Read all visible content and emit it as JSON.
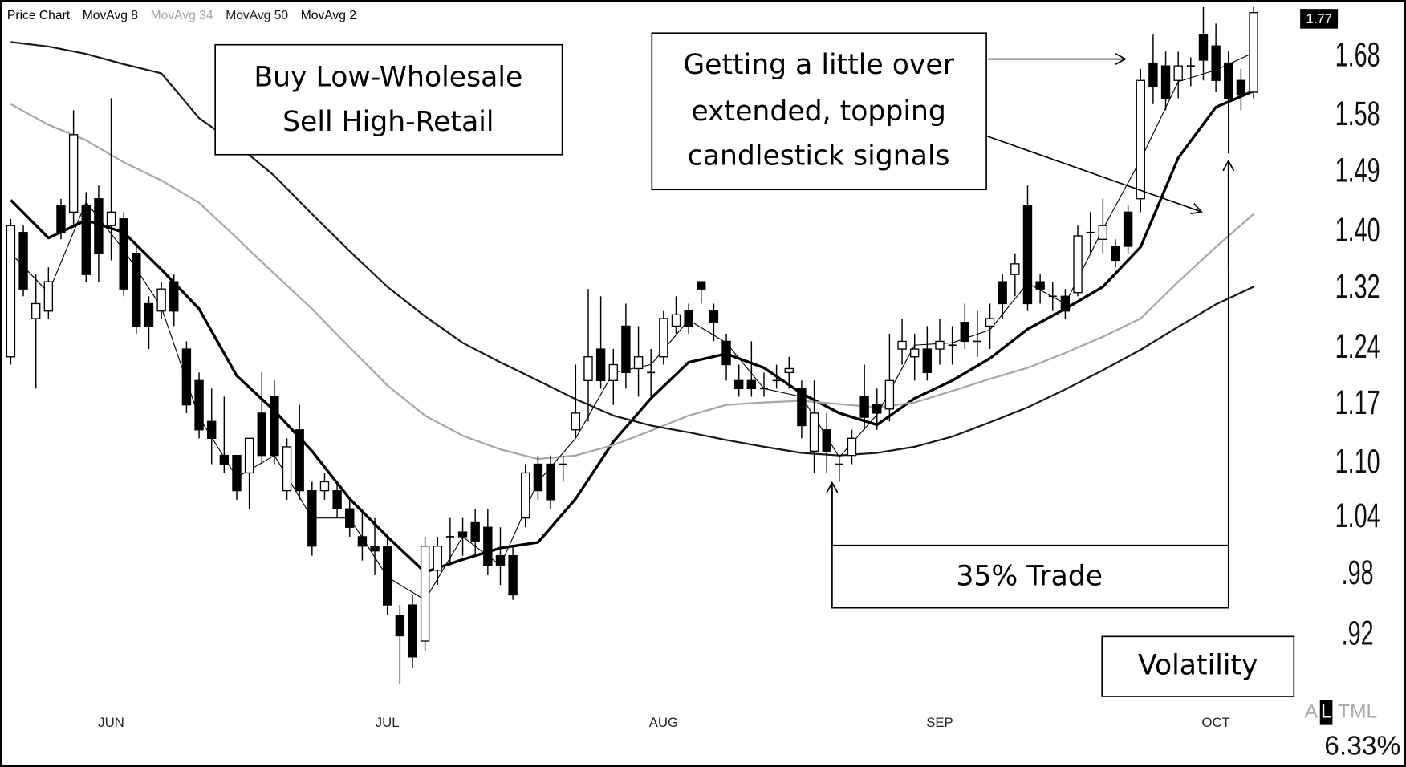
{
  "chart_data": {
    "type": "candlestick",
    "name": "Price Chart",
    "categories": [
      null,
      null,
      null,
      null,
      null,
      null,
      null,
      null,
      "JUN",
      null,
      null,
      null,
      null,
      null,
      null,
      null,
      null,
      null,
      null,
      null,
      null,
      null,
      null,
      null,
      null,
      null,
      null,
      null,
      null,
      null,
      "JUL",
      null,
      null,
      null,
      null,
      null,
      null,
      null,
      null,
      null,
      null,
      null,
      null,
      null,
      null,
      null,
      null,
      null,
      null,
      null,
      null,
      null,
      "AUG",
      null,
      null,
      null,
      null,
      null,
      null,
      null,
      null,
      null,
      null,
      null,
      null,
      null,
      null,
      null,
      null,
      null,
      null,
      null,
      null,
      null,
      "SEP",
      null,
      null,
      null,
      null,
      null,
      null,
      null,
      null,
      null,
      null,
      null,
      null,
      null,
      null,
      null,
      null,
      null,
      null,
      null,
      null,
      null,
      "OCT",
      null,
      null,
      null
    ],
    "open": [
      1.23,
      1.4,
      1.28,
      1.29,
      1.44,
      1.43,
      1.44,
      1.45,
      1.41,
      1.42,
      1.37,
      1.3,
      1.29,
      1.33,
      1.24,
      1.2,
      1.15,
      1.11,
      1.11,
      1.09,
      1.16,
      1.18,
      1.07,
      1.14,
      1.07,
      1.07,
      1.07,
      1.05,
      1.02,
      1.01,
      1.01,
      0.94,
      0.95,
      0.915,
      0.985,
      1.02,
      1.025,
      1.035,
      1.03,
      1.0,
      1.0,
      1.04,
      1.1,
      1.1,
      1.1,
      1.14,
      1.2,
      1.24,
      1.2,
      1.27,
      1.215,
      1.21,
      1.23,
      1.27,
      1.29,
      1.33,
      1.29,
      1.25,
      1.2,
      1.2,
      1.19,
      1.2,
      1.21,
      1.19,
      1.115,
      1.14,
      1.1,
      1.11,
      1.18,
      1.17,
      1.165,
      1.24,
      1.23,
      1.24,
      1.24,
      1.245,
      1.275,
      1.25,
      1.27,
      1.33,
      1.34,
      1.44,
      1.33,
      1.31,
      1.31,
      1.315,
      1.4,
      1.39,
      1.38,
      1.43,
      1.45,
      1.67,
      1.665,
      1.64,
      1.665,
      1.72,
      1.7,
      1.67,
      1.64,
      1.62
    ],
    "high": [
      1.42,
      1.41,
      1.34,
      1.35,
      1.45,
      1.59,
      1.46,
      1.47,
      1.61,
      1.43,
      1.38,
      1.31,
      1.33,
      1.34,
      1.25,
      1.21,
      1.19,
      1.18,
      1.11,
      1.13,
      1.21,
      1.2,
      1.13,
      1.17,
      1.08,
      1.09,
      1.08,
      1.06,
      1.05,
      1.04,
      1.02,
      0.95,
      0.96,
      1.02,
      1.02,
      1.04,
      1.04,
      1.05,
      1.05,
      1.03,
      1.01,
      1.1,
      1.11,
      1.11,
      1.11,
      1.22,
      1.32,
      1.31,
      1.24,
      1.3,
      1.27,
      1.24,
      1.29,
      1.31,
      1.3,
      1.33,
      1.3,
      1.26,
      1.22,
      1.25,
      1.21,
      1.22,
      1.23,
      1.2,
      1.2,
      1.16,
      1.11,
      1.14,
      1.22,
      1.19,
      1.26,
      1.28,
      1.26,
      1.27,
      1.28,
      1.27,
      1.3,
      1.29,
      1.3,
      1.34,
      1.37,
      1.47,
      1.34,
      1.33,
      1.32,
      1.41,
      1.43,
      1.45,
      1.39,
      1.44,
      1.66,
      1.72,
      1.69,
      1.69,
      1.68,
      1.77,
      1.74,
      1.69,
      1.66,
      1.77
    ],
    "low": [
      1.22,
      1.31,
      1.19,
      1.28,
      1.39,
      1.41,
      1.33,
      1.33,
      1.36,
      1.31,
      1.26,
      1.24,
      1.28,
      1.27,
      1.16,
      1.13,
      1.1,
      1.09,
      1.06,
      1.05,
      1.1,
      1.1,
      1.06,
      1.06,
      1.0,
      1.06,
      1.04,
      1.02,
      0.995,
      0.98,
      0.94,
      0.875,
      0.89,
      0.905,
      0.97,
      0.99,
      1.0,
      1.0,
      0.98,
      0.97,
      0.955,
      1.03,
      1.06,
      1.05,
      1.08,
      1.13,
      1.15,
      1.19,
      1.17,
      1.19,
      1.18,
      1.18,
      1.22,
      1.26,
      1.26,
      1.3,
      1.25,
      1.2,
      1.18,
      1.18,
      1.18,
      1.19,
      1.19,
      1.13,
      1.09,
      1.09,
      1.08,
      1.1,
      1.14,
      1.14,
      1.15,
      1.22,
      1.2,
      1.2,
      1.22,
      1.22,
      1.24,
      1.23,
      1.24,
      1.28,
      1.31,
      1.29,
      1.3,
      1.29,
      1.28,
      1.31,
      1.37,
      1.37,
      1.35,
      1.37,
      1.43,
      1.6,
      1.59,
      1.61,
      1.63,
      1.64,
      1.62,
      1.52,
      1.59,
      1.61
    ],
    "close": [
      1.41,
      1.32,
      1.3,
      1.33,
      1.4,
      1.55,
      1.34,
      1.37,
      1.43,
      1.32,
      1.27,
      1.27,
      1.32,
      1.29,
      1.17,
      1.14,
      1.13,
      1.1,
      1.07,
      1.13,
      1.11,
      1.11,
      1.12,
      1.07,
      1.01,
      1.08,
      1.05,
      1.03,
      1.01,
      1.005,
      0.95,
      0.92,
      0.9,
      1.01,
      1.01,
      1.02,
      1.02,
      1.015,
      0.99,
      0.99,
      0.96,
      1.09,
      1.07,
      1.06,
      1.1,
      1.16,
      1.23,
      1.2,
      1.22,
      1.21,
      1.23,
      1.21,
      1.28,
      1.285,
      1.27,
      1.32,
      1.275,
      1.22,
      1.19,
      1.19,
      1.19,
      1.2,
      1.215,
      1.145,
      1.16,
      1.115,
      1.1,
      1.13,
      1.155,
      1.16,
      1.2,
      1.25,
      1.24,
      1.21,
      1.25,
      1.245,
      1.25,
      1.25,
      1.28,
      1.3,
      1.355,
      1.3,
      1.32,
      1.31,
      1.29,
      1.395,
      1.4,
      1.41,
      1.36,
      1.38,
      1.64,
      1.63,
      1.61,
      1.665,
      1.665,
      1.675,
      1.64,
      1.61,
      1.615,
      1.76
    ],
    "up_color": "#ffffff",
    "down_color": "#000000",
    "series": [
      {
        "name": "MovAvg 8",
        "color": "#000000",
        "width": 3,
        "x": [
          0,
          3,
          6,
          9,
          12,
          15,
          18,
          21,
          24,
          27,
          30,
          33,
          36,
          39,
          42,
          45,
          48,
          51,
          54,
          57,
          60,
          63,
          66,
          69,
          72,
          75,
          78,
          81,
          84,
          87,
          90,
          93,
          96,
          99
        ],
        "values": [
          1.448,
          1.392,
          1.418,
          1.4,
          1.347,
          1.293,
          1.206,
          1.163,
          1.115,
          1.061,
          1.02,
          0.983,
          0.996,
          1.008,
          1.014,
          1.061,
          1.126,
          1.178,
          1.223,
          1.234,
          1.216,
          1.184,
          1.16,
          1.146,
          1.178,
          1.2,
          1.228,
          1.266,
          1.293,
          1.323,
          1.379,
          1.513,
          1.595,
          1.622
        ]
      },
      {
        "name": "MovAvg 34",
        "color": "#a6a6a6",
        "width": 2,
        "x": [
          0,
          3,
          6,
          9,
          12,
          15,
          18,
          21,
          24,
          27,
          30,
          33,
          36,
          39,
          42,
          45,
          48,
          51,
          54,
          57,
          60,
          63,
          66,
          69,
          72,
          75,
          78,
          81,
          84,
          87,
          90,
          93,
          96,
          99
        ],
        "values": [
          1.6,
          1.566,
          1.541,
          1.506,
          1.478,
          1.444,
          1.392,
          1.341,
          1.293,
          1.242,
          1.194,
          1.157,
          1.133,
          1.117,
          1.106,
          1.11,
          1.122,
          1.139,
          1.157,
          1.17,
          1.173,
          1.175,
          1.171,
          1.167,
          1.173,
          1.187,
          1.202,
          1.216,
          1.235,
          1.256,
          1.28,
          1.33,
          1.379,
          1.427
        ]
      },
      {
        "name": "MovAvg 50",
        "color": "#1a1a1a",
        "width": 2,
        "x": [
          0,
          3,
          6,
          9,
          12,
          15,
          18,
          21,
          24,
          27,
          30,
          33,
          36,
          39,
          42,
          45,
          48,
          51,
          54,
          57,
          60,
          63,
          66,
          69,
          72,
          75,
          78,
          81,
          84,
          87,
          90,
          93,
          96,
          99
        ],
        "values": [
          1.707,
          1.699,
          1.686,
          1.668,
          1.652,
          1.577,
          1.534,
          1.485,
          1.427,
          1.373,
          1.323,
          1.283,
          1.248,
          1.223,
          1.2,
          1.177,
          1.157,
          1.145,
          1.137,
          1.128,
          1.12,
          1.113,
          1.11,
          1.113,
          1.12,
          1.132,
          1.149,
          1.167,
          1.189,
          1.213,
          1.239,
          1.269,
          1.299,
          1.323
        ]
      },
      {
        "name": "MovAvg 2",
        "color": "#000000",
        "width": 1,
        "x": [
          0,
          3,
          6,
          9,
          12,
          15,
          18,
          21,
          24,
          27,
          30,
          33,
          36,
          39,
          42,
          45,
          48,
          51,
          54,
          57,
          60,
          63,
          66,
          69,
          72,
          75,
          78,
          81,
          84,
          87,
          90,
          93,
          96,
          99
        ],
        "values": [
          1.37,
          1.315,
          1.445,
          1.375,
          1.295,
          1.155,
          1.085,
          1.11,
          1.04,
          1.04,
          0.978,
          0.955,
          1.02,
          0.99,
          1.08,
          1.13,
          1.21,
          1.22,
          1.278,
          1.248,
          1.19,
          1.18,
          1.108,
          1.158,
          1.245,
          1.248,
          1.265,
          1.328,
          1.3,
          1.405,
          1.51,
          1.638,
          1.658,
          1.688
        ]
      }
    ],
    "log": true,
    "ylim": [
      0.855,
      1.77
    ],
    "yticks": [
      1.68,
      1.58,
      1.49,
      {
        "value": 1.4,
        "label": "1.40"
      },
      1.32,
      1.24,
      1.17,
      {
        "value": 1.1,
        "label": "1.10"
      },
      1.04,
      {
        "value": 0.98,
        "label": ".98"
      },
      {
        "value": 0.92,
        "label": ".92"
      }
    ],
    "last_price": 1.77,
    "footer": {
      "symbol_a": "A",
      "symbol_b": "L",
      "indicator": "TML",
      "reading": "6.33%"
    },
    "annotations": [
      {
        "lines": [
          "Buy Low-Wholesale",
          "Sell High-Retail"
        ]
      },
      {
        "lines": [
          "Getting a little over",
          "extended, topping",
          "candlestick signals"
        ]
      },
      {
        "lines": [
          "35% Trade"
        ]
      },
      {
        "lines": [
          "Volatility"
        ]
      }
    ]
  }
}
